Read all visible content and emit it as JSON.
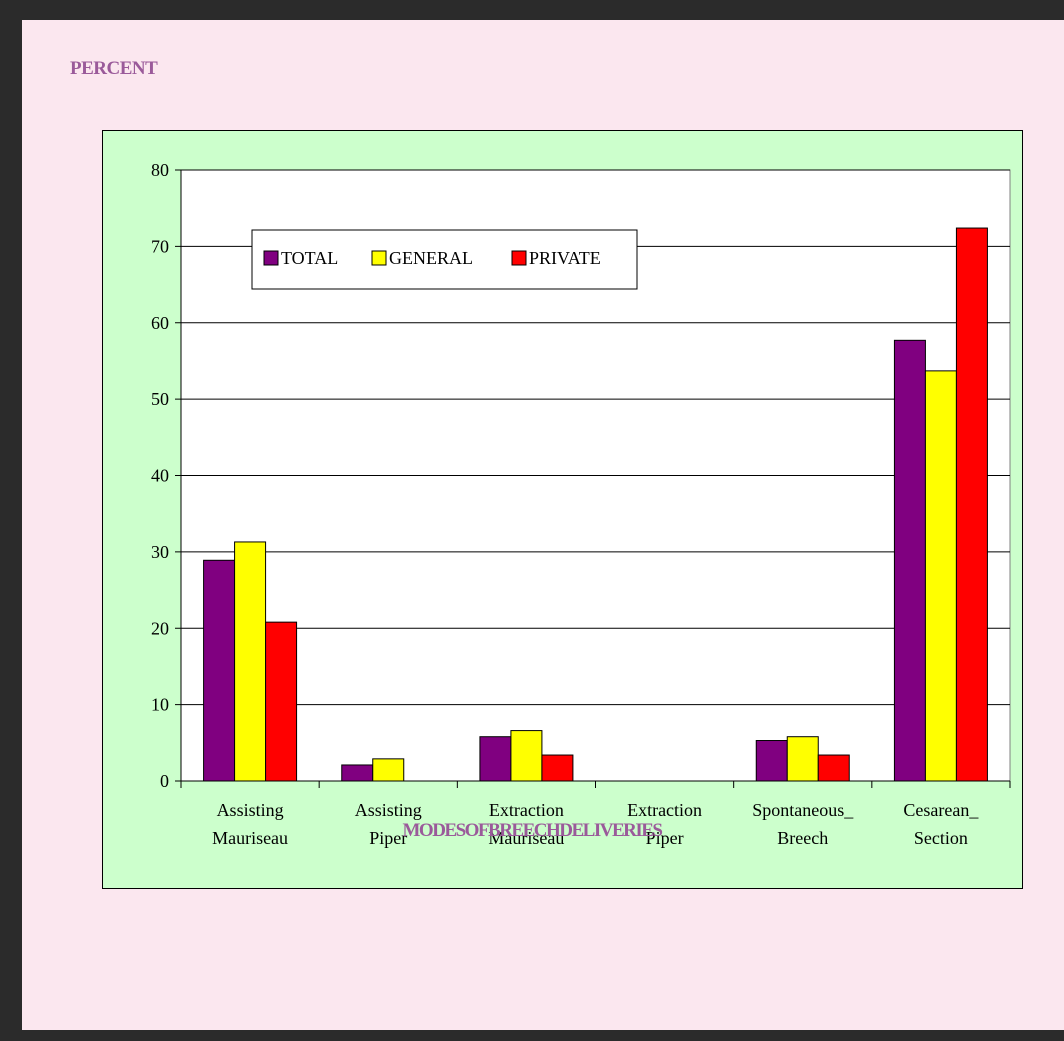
{
  "page": {
    "ylabel": "PERCENT",
    "xlabel": "MODESOFBREECHDELIVERIES"
  },
  "colors": {
    "plot_bg": "#ffffff",
    "chart_bg": "#ccffcc",
    "page_bg": "#fbe7ef",
    "frame": "#2b2b2b",
    "label": "#9a5a9a"
  },
  "chart_data": {
    "type": "bar",
    "title": "",
    "xlabel": "MODESOFBREECHDELIVERIES",
    "ylabel": "PERCENT",
    "ylim": [
      0,
      80
    ],
    "yticks": [
      0,
      10,
      20,
      30,
      40,
      50,
      60,
      70,
      80
    ],
    "grid": true,
    "legend_position": "top-left",
    "categories": [
      [
        "Assisting",
        "Mauriseau"
      ],
      [
        "Assisting",
        "Piper"
      ],
      [
        "Extraction",
        "Mauriseau"
      ],
      [
        "Extraction",
        "Piper"
      ],
      [
        "Spontaneous_",
        "Breech"
      ],
      [
        "Cesarean_",
        "Section"
      ]
    ],
    "series": [
      {
        "name": "TOTAL",
        "color": "#800080",
        "values": [
          28.9,
          2.1,
          5.8,
          0,
          5.3,
          57.7
        ]
      },
      {
        "name": "GENERAL",
        "color": "#ffff00",
        "values": [
          31.3,
          2.9,
          6.6,
          0,
          5.8,
          53.7
        ]
      },
      {
        "name": "PRIVATE",
        "color": "#ff0000",
        "values": [
          20.8,
          0,
          3.4,
          0,
          3.4,
          72.4
        ]
      }
    ]
  }
}
